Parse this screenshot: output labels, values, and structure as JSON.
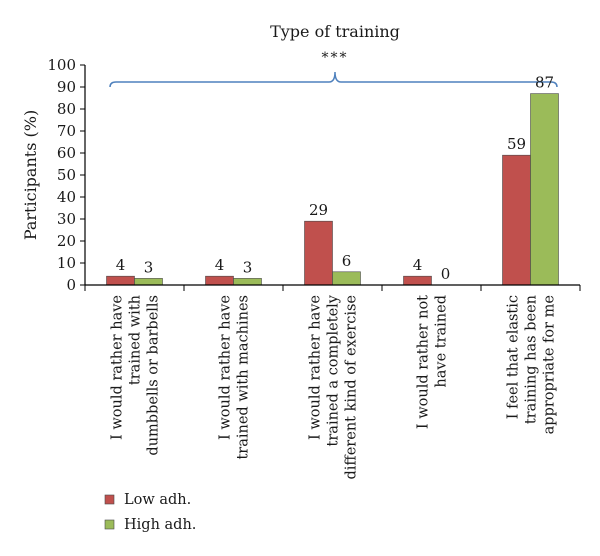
{
  "chart_data": {
    "type": "bar",
    "title": "Type of training",
    "significance": "***",
    "ylabel": "Participants (%)",
    "xlabel": "",
    "ylim": [
      0,
      100
    ],
    "yticks": [
      "0",
      "10",
      "20",
      "30",
      "40",
      "50",
      "60",
      "70",
      "80",
      "90",
      "100"
    ],
    "grid": false,
    "legend_position": "bottom-left",
    "categories": [
      [
        "I would rather have",
        "trained with",
        "dumbbells or barbells"
      ],
      [
        "I would rather have",
        "trained with machines"
      ],
      [
        "I would rather have",
        "trained a completely",
        "different kind of exercise"
      ],
      [
        "I would rather not",
        "have trained"
      ],
      [
        "I feel that elastic",
        "training has been",
        "appropriate for me"
      ]
    ],
    "series": [
      {
        "name": "Low adh.",
        "color": "#c0504d",
        "values": [
          4,
          4,
          29,
          4,
          59
        ],
        "labels": [
          "4",
          "4",
          "29",
          "4",
          "59"
        ]
      },
      {
        "name": "High adh.",
        "color": "#9bbb59",
        "values": [
          3,
          3,
          6,
          0,
          87
        ],
        "labels": [
          "3",
          "3",
          "6",
          "0",
          "87"
        ]
      }
    ],
    "bracket_color": "#4f81bd"
  }
}
